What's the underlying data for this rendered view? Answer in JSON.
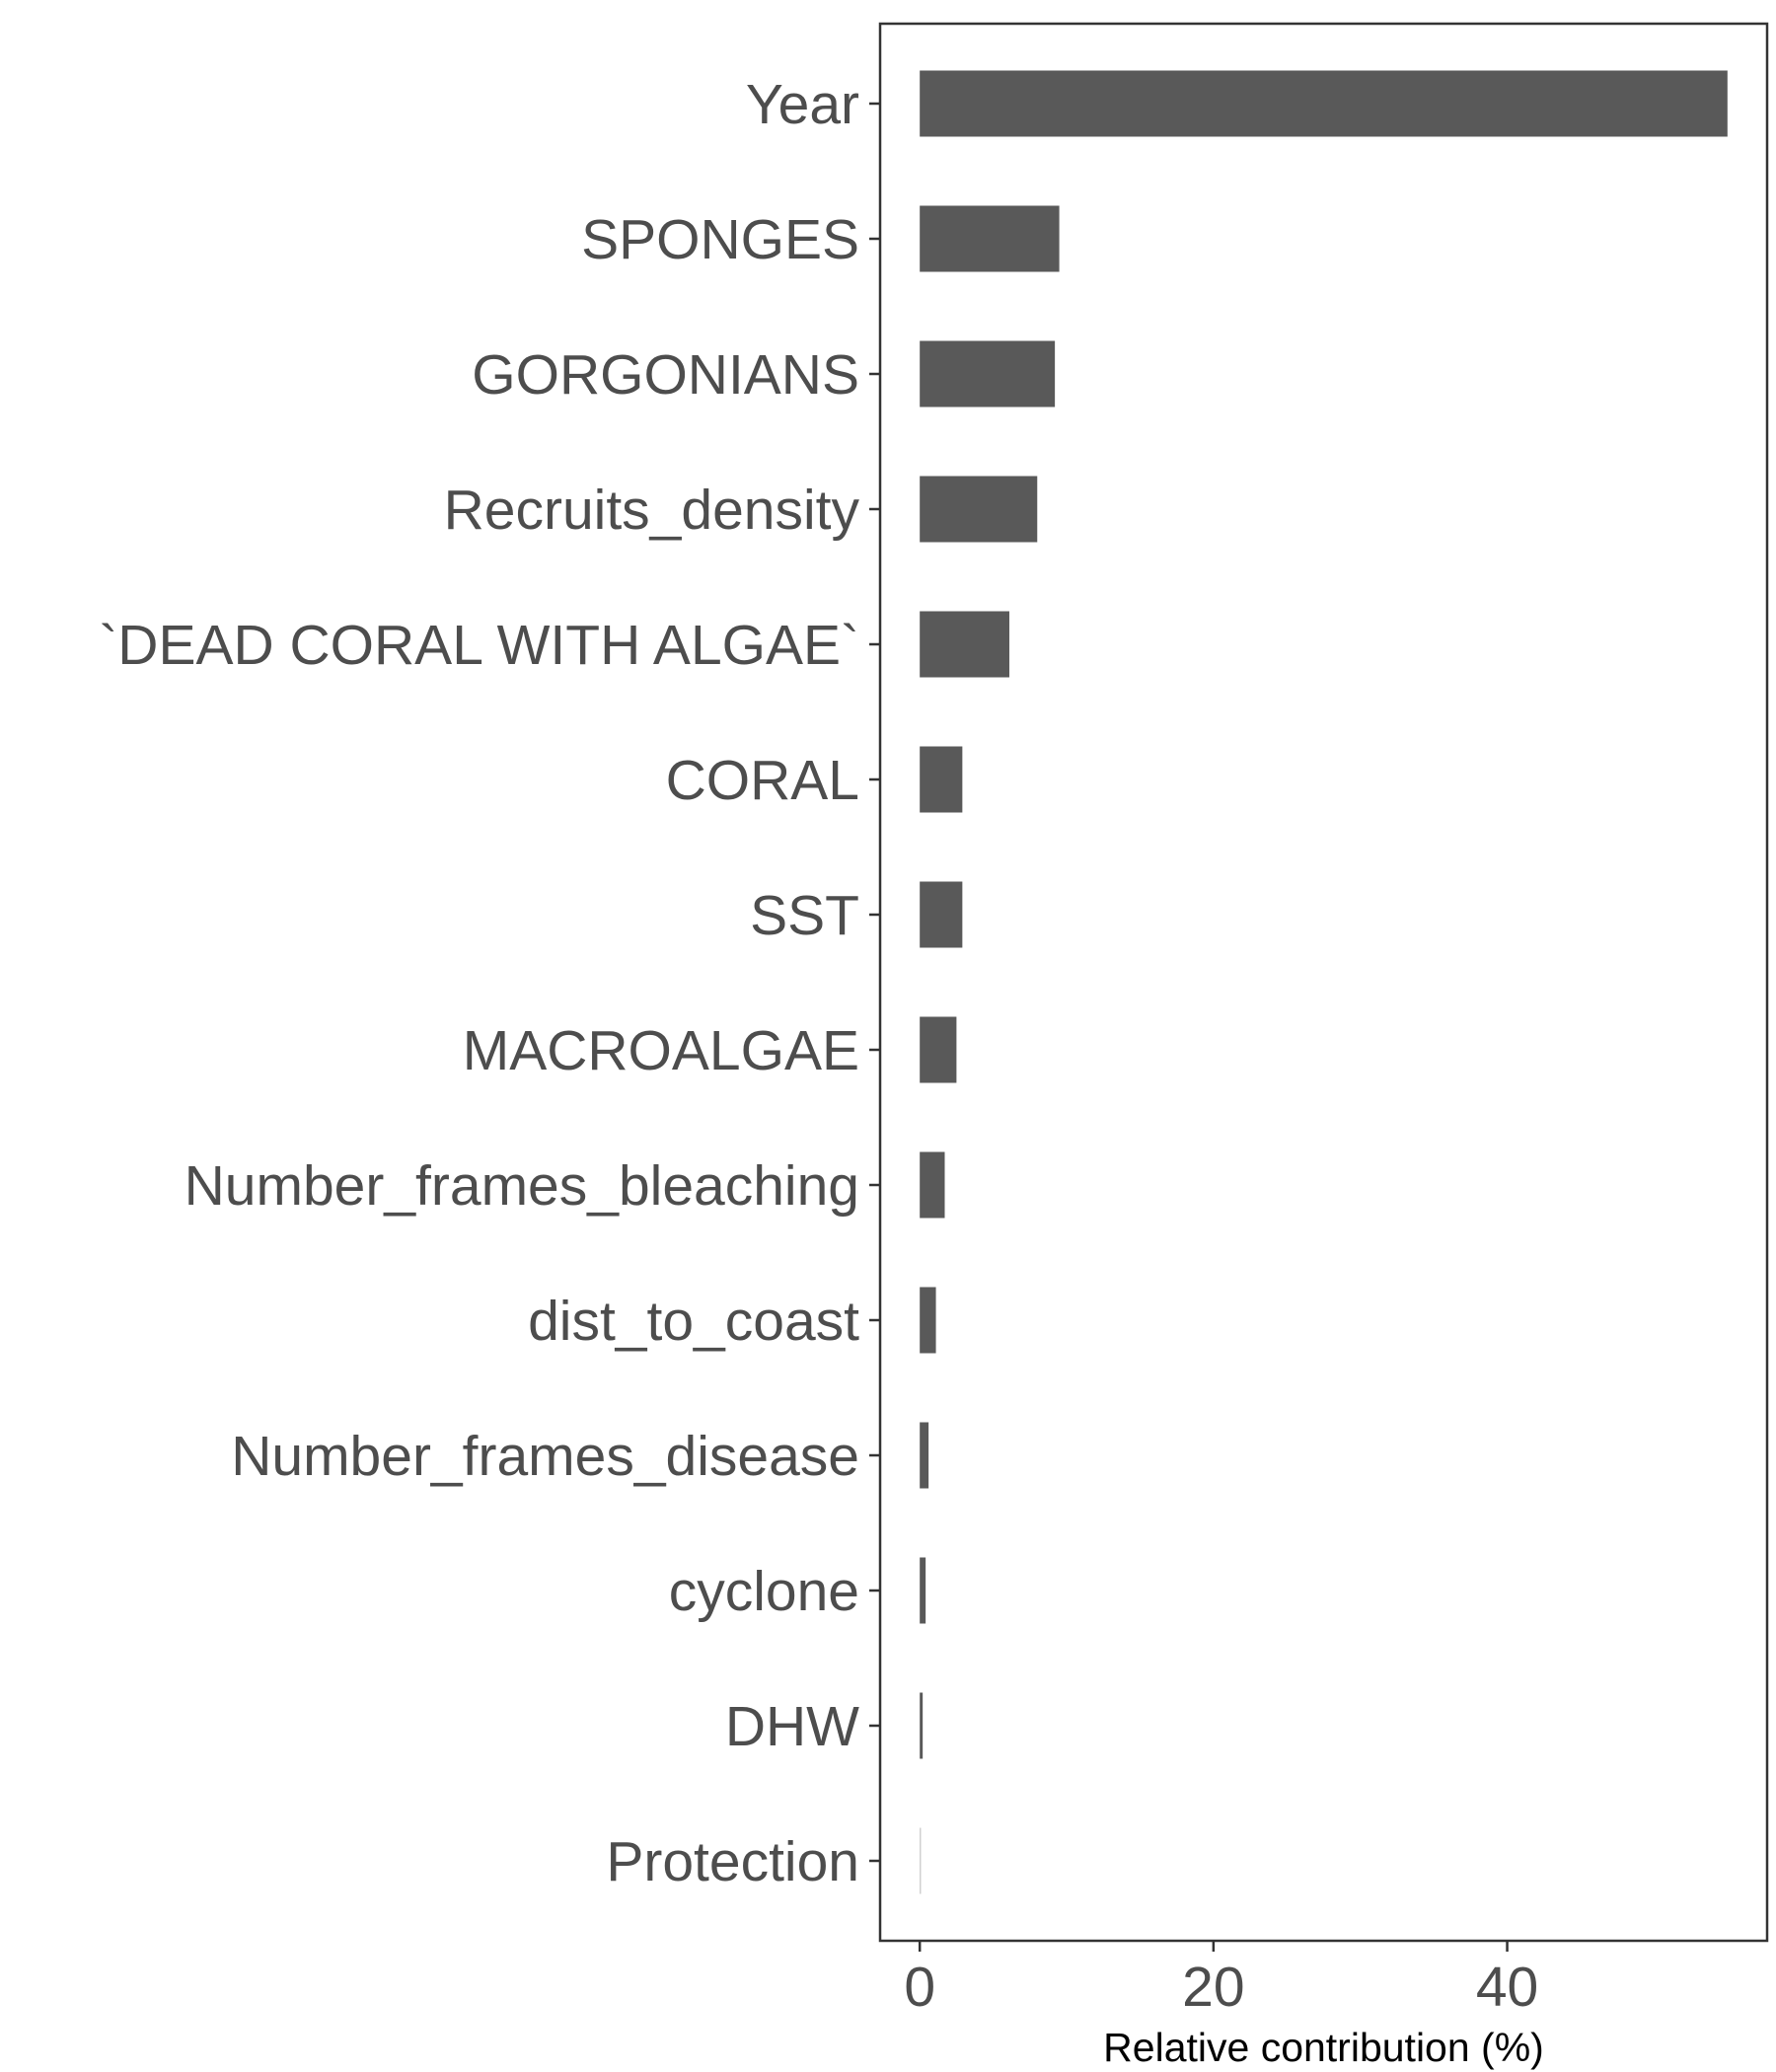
{
  "chart_data": {
    "type": "bar",
    "orientation": "horizontal",
    "categories": [
      "Year",
      "SPONGES",
      "GORGONIANS",
      "Recruits_density",
      "`DEAD CORAL WITH ALGAE`",
      "CORAL",
      "SST",
      "MACROALGAE",
      "Number_frames_bleaching",
      "dist_to_coast",
      "Number_frames_disease",
      "cyclone",
      "DHW",
      "Protection"
    ],
    "values": [
      55.0,
      9.5,
      9.2,
      8.0,
      6.1,
      2.9,
      2.9,
      2.5,
      1.7,
      1.1,
      0.6,
      0.4,
      0.2,
      0.05
    ],
    "title": "",
    "xlabel": "Relative contribution (%)",
    "ylabel": "",
    "xticks": [
      0,
      20,
      40
    ],
    "xlim": [
      -2.7,
      57.7
    ],
    "grid": false,
    "legend": "none",
    "bar_color": "#595959",
    "frame_color": "#333333",
    "text_color": "#4d4d4d"
  }
}
